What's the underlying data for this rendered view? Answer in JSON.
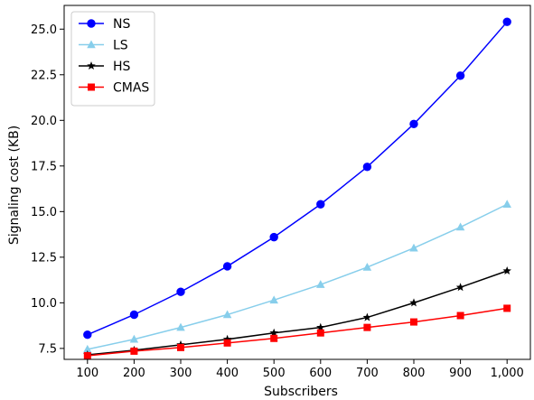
{
  "chart_data": {
    "type": "line",
    "xlabel": "Subscribers",
    "ylabel": "Signaling cost (KB)",
    "x": [
      100,
      200,
      300,
      400,
      500,
      600,
      700,
      800,
      900,
      1000
    ],
    "x_tick_labels": [
      "100",
      "200",
      "300",
      "400",
      "500",
      "600",
      "700",
      "800",
      "900",
      "1,000"
    ],
    "xlim": [
      50,
      1050
    ],
    "ylim": [
      6.9,
      26.3
    ],
    "y_ticks": [
      7.5,
      10.0,
      12.5,
      15.0,
      17.5,
      20.0,
      22.5,
      25.0
    ],
    "y_tick_labels": [
      "7.5",
      "10.0",
      "12.5",
      "15.0",
      "17.5",
      "20.0",
      "22.5",
      "25.0"
    ],
    "grid": false,
    "legend_position": "top-left",
    "series": [
      {
        "name": "NS",
        "color": "#0000ff",
        "marker": "circle",
        "values": [
          8.25,
          9.35,
          10.6,
          12.0,
          13.6,
          15.4,
          17.45,
          19.8,
          22.45,
          25.4
        ]
      },
      {
        "name": "LS",
        "color": "#87ceeb",
        "marker": "triangle",
        "values": [
          7.45,
          8.0,
          8.65,
          9.35,
          10.15,
          11.0,
          11.95,
          13.0,
          14.15,
          15.4
        ]
      },
      {
        "name": "HS",
        "color": "#000000",
        "marker": "star",
        "values": [
          7.15,
          7.4,
          7.7,
          8.0,
          8.35,
          8.65,
          9.2,
          10.0,
          10.85,
          11.75
        ]
      },
      {
        "name": "CMAS",
        "color": "#ff0000",
        "marker": "square",
        "values": [
          7.1,
          7.35,
          7.55,
          7.8,
          8.05,
          8.35,
          8.65,
          8.95,
          9.3,
          9.7
        ]
      }
    ]
  }
}
